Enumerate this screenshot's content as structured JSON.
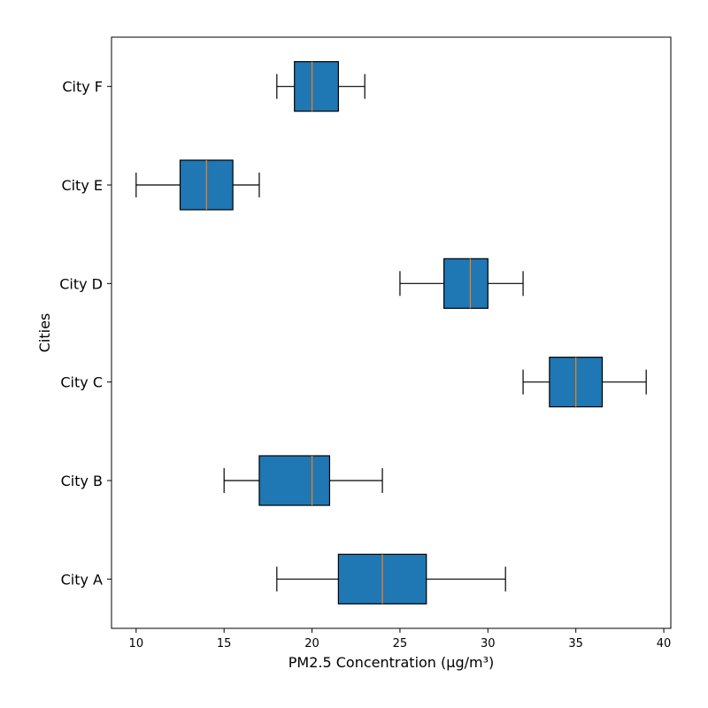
{
  "chart_data": {
    "type": "boxplot",
    "orientation": "horizontal",
    "title": "",
    "xlabel": "PM2.5 Concentration (µg/m³)",
    "ylabel": "Cities",
    "xlim": [
      8.6,
      40.4
    ],
    "xticks": [
      10,
      15,
      20,
      25,
      30,
      35,
      40
    ],
    "categories": [
      "City A",
      "City B",
      "City C",
      "City D",
      "City E",
      "City F"
    ],
    "boxes": [
      {
        "label": "City A",
        "whislo": 18,
        "q1": 21.5,
        "med": 24,
        "q3": 26.5,
        "whishi": 31
      },
      {
        "label": "City B",
        "whislo": 15,
        "q1": 17,
        "med": 20,
        "q3": 21,
        "whishi": 24
      },
      {
        "label": "City C",
        "whislo": 32,
        "q1": 33.5,
        "med": 35,
        "q3": 36.5,
        "whishi": 39
      },
      {
        "label": "City D",
        "whislo": 25,
        "q1": 27.5,
        "med": 29,
        "q3": 30,
        "whishi": 32
      },
      {
        "label": "City E",
        "whislo": 10,
        "q1": 12.5,
        "med": 14,
        "q3": 15.5,
        "whishi": 17
      },
      {
        "label": "City F",
        "whislo": 18,
        "q1": 19,
        "med": 20,
        "q3": 21.5,
        "whishi": 23
      }
    ],
    "colors": {
      "box_fill": "#1f77b4",
      "median": "#ff7f0e",
      "edge": "#000000"
    },
    "grid": false,
    "legend": "none"
  }
}
